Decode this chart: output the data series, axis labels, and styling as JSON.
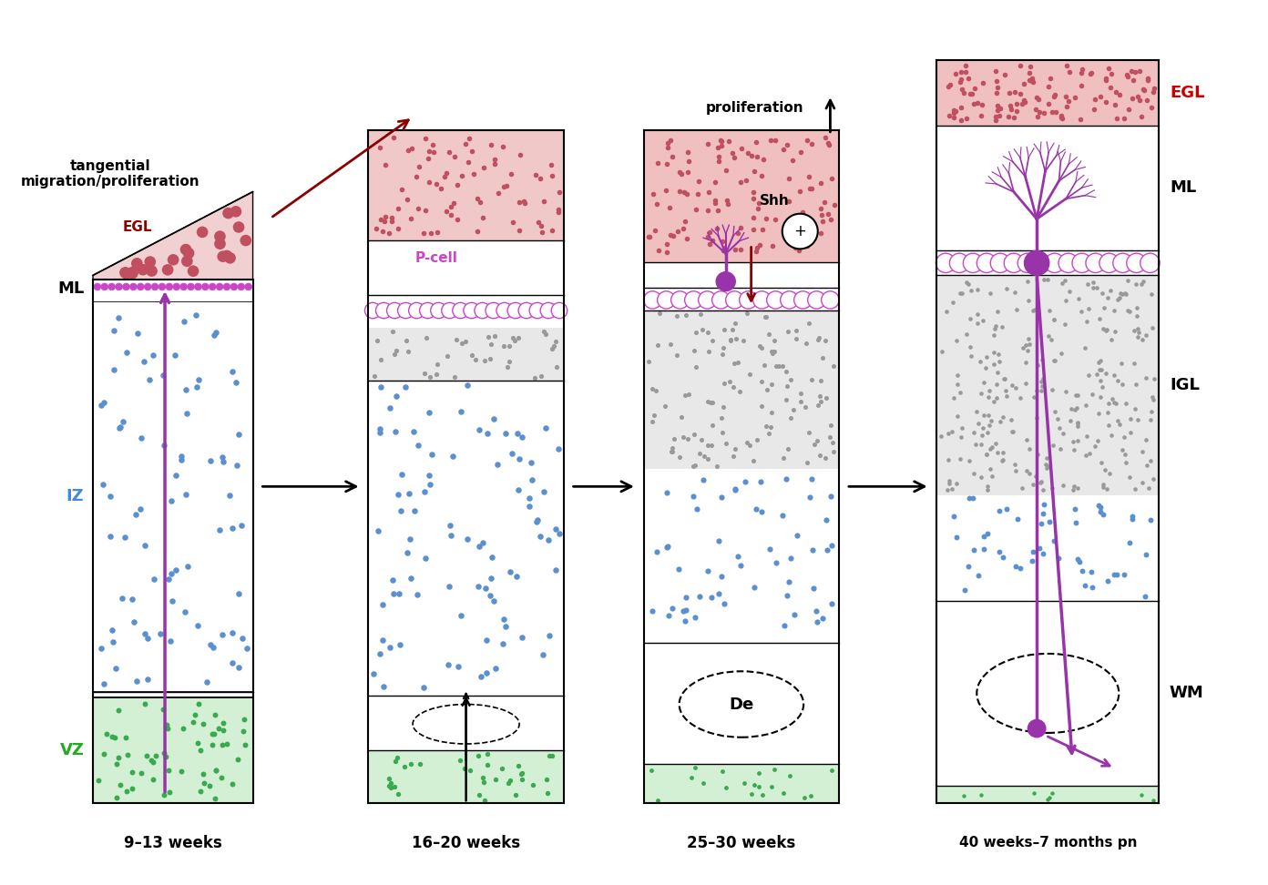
{
  "fig_width": 13.92,
  "fig_height": 9.72,
  "bg_color": "#ffffff",
  "egl_color": "#c9626a",
  "egl_dot_color": "#c05060",
  "ml_color": "#ffffff",
  "iz_color": "#ffffff",
  "iz_dot_color": "#5a8fd0",
  "vz_color": "#d4f0d4",
  "vz_dot_color": "#3aaa50",
  "igl_color": "#e0e0e0",
  "igl_dot_color": "#aaaaaa",
  "pcell_color": "#cc44cc",
  "dendrite_color": "#9933aa",
  "axon_color": "#9933aa",
  "dark_red_arrow": "#8B0000",
  "tangential_arrow_color": "#8B0000",
  "proliferation_arrow_color": "#000000",
  "radial_arrow_color": "#9933aa",
  "stages": [
    "9-13 weeks",
    "16-20 weeks",
    "25-30 weeks",
    "40 weeks-7 months pn"
  ],
  "stage_labels_text": [
    "9–13 weeks",
    "16–20 weeks",
    "25–30 weeks",
    "40 weeks–7 months pn"
  ]
}
